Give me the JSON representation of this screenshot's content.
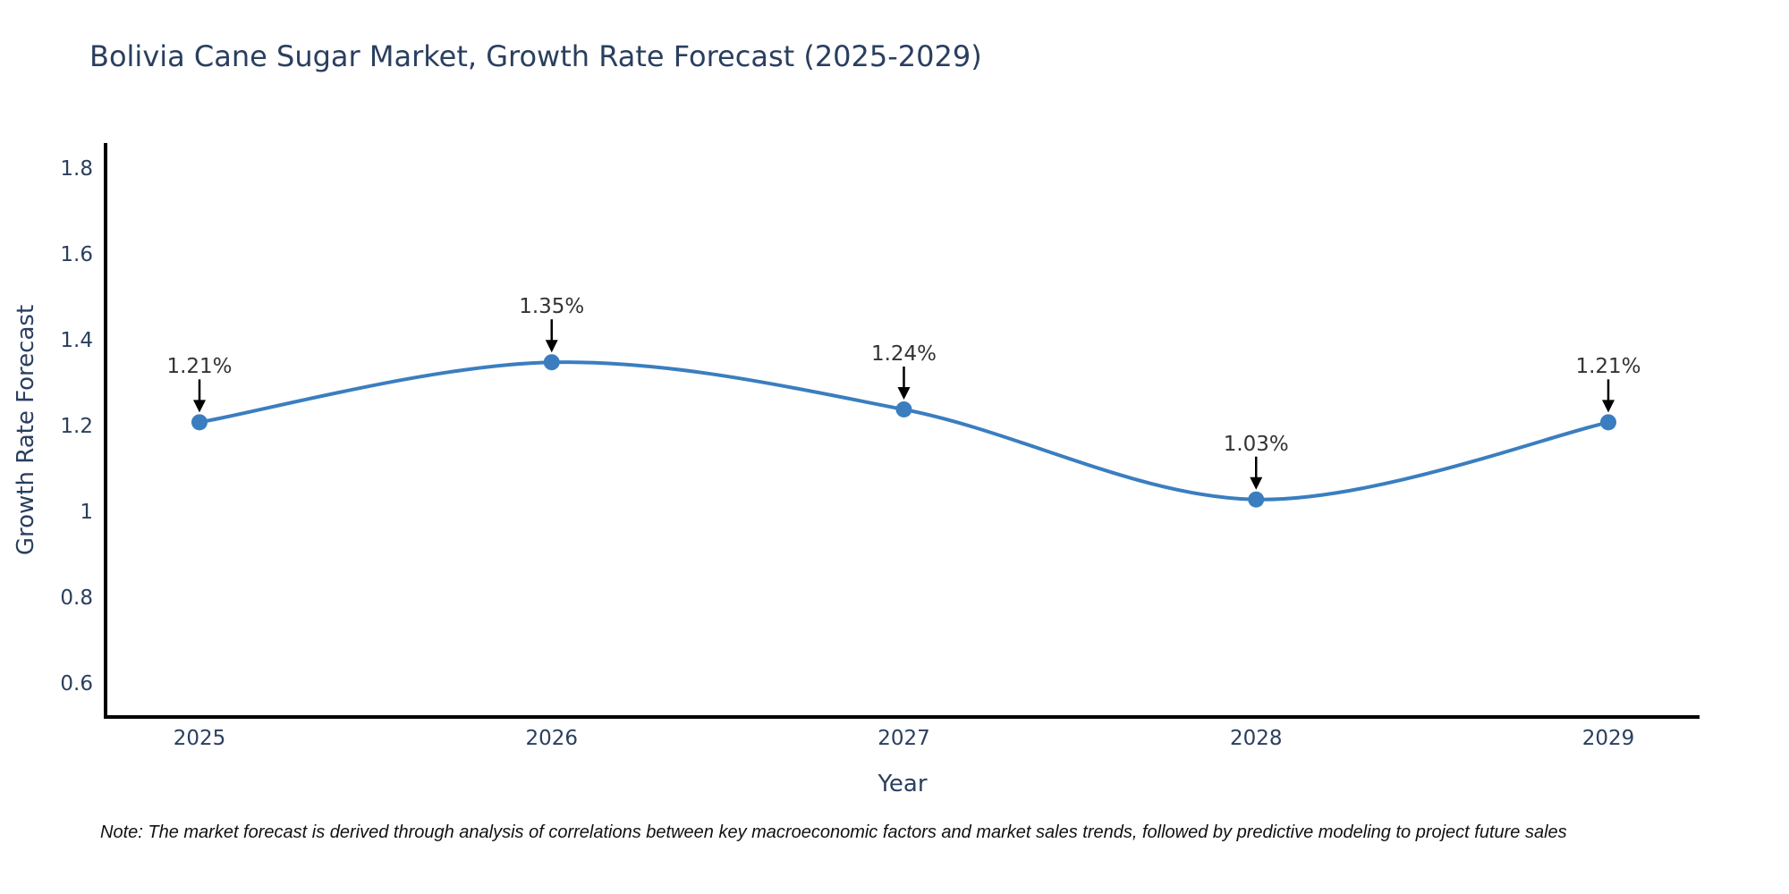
{
  "chart_data": {
    "type": "line",
    "title": "Bolivia Cane Sugar Market, Growth Rate Forecast (2025-2029)",
    "xlabel": "Year",
    "ylabel": "Growth Rate Forecast",
    "x": [
      2025,
      2026,
      2027,
      2028,
      2029
    ],
    "values": [
      1.21,
      1.35,
      1.24,
      1.03,
      1.21
    ],
    "point_labels": [
      "1.21%",
      "1.35%",
      "1.24%",
      "1.03%",
      "1.21%"
    ],
    "yticks": [
      "1.8",
      "1.6",
      "1.4",
      "1.2",
      "1",
      "0.8",
      "0.6"
    ],
    "ytick_values": [
      1.8,
      1.6,
      1.4,
      1.2,
      1.0,
      0.8,
      0.6
    ],
    "ylim": [
      0.523,
      1.861
    ],
    "grid": false,
    "legend": "none",
    "line_shape": "spline",
    "line_color": "#3a7ebf",
    "marker_color": "#3a7ebf",
    "axis_line_color": "#000000",
    "text_color": "#2a3f5f",
    "annotation_color": "#333333",
    "annotation_arrow_color": "#000000"
  },
  "note": "Note: The market forecast is derived through analysis of correlations between key macroeconomic factors and market sales trends, followed by predictive modeling to project future sales"
}
